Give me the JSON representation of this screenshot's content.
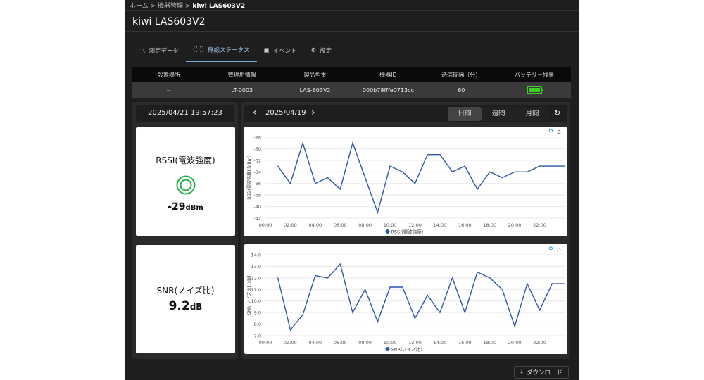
{
  "breadcrumb": {
    "home": "ホーム",
    "devices": "機器管理",
    "current": "kiwi LAS603V2",
    "sep": ">"
  },
  "page_title": "kiwi LAS603V2",
  "tabs": [
    {
      "label": "測定データ",
      "icon": "chart-line-icon"
    },
    {
      "label": "無線ステータス",
      "icon": "antenna-icon",
      "active": true
    },
    {
      "label": "イベント",
      "icon": "calendar-icon"
    },
    {
      "label": "設定",
      "icon": "gear-icon"
    }
  ],
  "info_table": {
    "headers": [
      "設置場所",
      "管理用情報",
      "製品型番",
      "機器ID",
      "送信間隔（分）",
      "バッテリー残量"
    ],
    "row": [
      "--",
      "LT-0003",
      "LAS-603V2",
      "000b78fffe0713cc",
      "60"
    ],
    "battery_level": 1.0,
    "battery_color": "#3ecf25"
  },
  "current_time": "2025/04/21 19:57:23",
  "rssi_card": {
    "label": "RSSI(電波強度)",
    "value": "-29",
    "unit": "dBm",
    "icon": "signal-ring-icon",
    "icon_color": "#22b04a"
  },
  "snr_card": {
    "label": "SNR(ノイズ比)",
    "value": "9.2",
    "unit": "dB"
  },
  "date_nav": {
    "date": "2025/04/19",
    "prev": "‹",
    "next": "›"
  },
  "period": {
    "options": [
      "日間",
      "週間",
      "月間"
    ],
    "selected": "日間"
  },
  "download_label": "ダウンロード",
  "chart_data": [
    {
      "type": "line",
      "ylabel": "RSSI(電波強度) [dBm]",
      "legend": "RSSI(電波強度)",
      "legend_position": "bottom",
      "color": "#2f55a8",
      "grid": true,
      "xticks": [
        "00:00",
        "02:00",
        "04:00",
        "06:00",
        "08:00",
        "10:00",
        "12:00",
        "14:00",
        "16:00",
        "18:00",
        "20:00",
        "22:00"
      ],
      "xlim": [
        0,
        24
      ],
      "ylim": [
        -42,
        -28
      ],
      "yticks": [
        -28,
        -30,
        -32,
        -34,
        -36,
        -38,
        -40,
        -42
      ],
      "x": [
        1,
        2,
        3,
        4,
        5,
        6,
        7,
        8,
        9,
        10,
        11,
        12,
        13,
        14,
        15,
        16,
        17,
        18,
        19,
        20,
        21,
        22,
        23,
        24
      ],
      "values": [
        -33,
        -36,
        -29,
        -36,
        -35,
        -37,
        -29,
        -35,
        -41,
        -33,
        -34,
        -36,
        -31,
        -31,
        -34,
        -33,
        -37,
        -34,
        -35,
        -34,
        -34,
        -33,
        -33,
        -33
      ]
    },
    {
      "type": "line",
      "ylabel": "SNR(ノイズ比) [dB]",
      "legend": "SNR(ノイズ比)",
      "legend_position": "bottom",
      "color": "#2f55a8",
      "grid": true,
      "xticks": [
        "00:00",
        "02:00",
        "04:00",
        "06:00",
        "08:00",
        "10:00",
        "12:00",
        "14:00",
        "16:00",
        "18:00",
        "20:00",
        "22:00"
      ],
      "xlim": [
        0,
        24
      ],
      "ylim": [
        7,
        14
      ],
      "yticks": [
        "14.0",
        "13.0",
        "12.0",
        "11.0",
        "10.0",
        "9.0",
        "8.0",
        "7.0"
      ],
      "x": [
        1,
        2,
        3,
        4,
        5,
        6,
        7,
        8,
        9,
        10,
        11,
        12,
        13,
        14,
        15,
        16,
        17,
        18,
        19,
        20,
        21,
        22,
        23,
        24
      ],
      "values": [
        12.0,
        7.5,
        8.8,
        12.2,
        12.0,
        13.2,
        9.0,
        11.0,
        8.2,
        11.2,
        11.2,
        8.5,
        10.5,
        9.0,
        12.0,
        9.0,
        12.5,
        12.0,
        11.0,
        7.8,
        11.5,
        9.2,
        11.5,
        11.5
      ]
    }
  ]
}
